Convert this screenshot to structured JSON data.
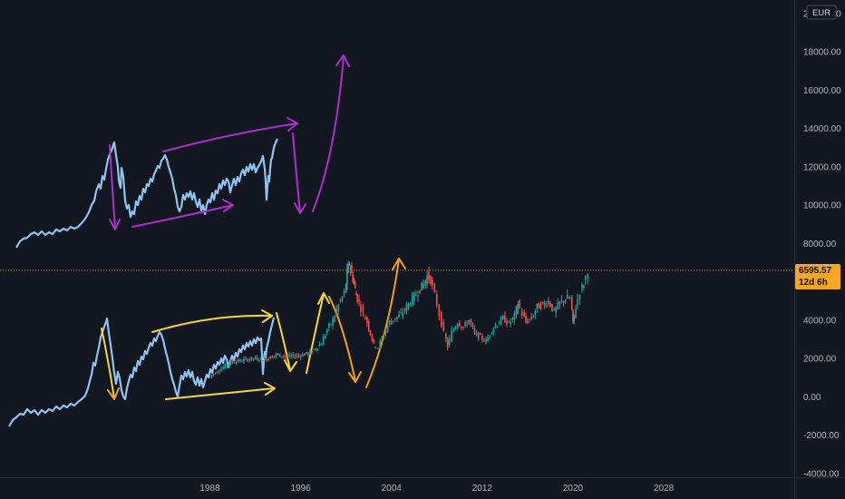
{
  "chart_data": {
    "type": "line",
    "currency": "EUR",
    "y_ticks": [
      -4000,
      -2000,
      0,
      2000,
      4000,
      6000,
      8000,
      10000,
      12000,
      14000,
      16000,
      18000,
      20000
    ],
    "y_tick_labels": [
      "-4000.00",
      "-2000.00",
      "0.00",
      "2000.00",
      "4000.00",
      "6000.00",
      "8000.00",
      "10000.00",
      "12000.00",
      "14000.00",
      "16000.00",
      "18000.00",
      "20000.00"
    ],
    "ylim": [
      -4200,
      20700
    ],
    "x_ticks": [
      1988,
      1996,
      2004,
      2012,
      2020,
      2028
    ],
    "xlim": [
      1969.5,
      2039.5
    ],
    "last_price": "6595.57",
    "last_price_value": 6595.57,
    "countdown": "12d 6h",
    "grid": false,
    "series": [
      {
        "kind": "candles",
        "up_color": "#26a69a",
        "down_color": "#ef5350",
        "points": [
          [
            1988.0,
            1000
          ],
          [
            1989.0,
            1400
          ],
          [
            1990.0,
            1800
          ],
          [
            1991.0,
            1900
          ],
          [
            1992.0,
            2000
          ],
          [
            1993.0,
            1950
          ],
          [
            1994.0,
            2200
          ],
          [
            1995.0,
            2100
          ],
          [
            1996.0,
            2150
          ],
          [
            1997.0,
            2300
          ],
          [
            1998.0,
            2800
          ],
          [
            1998.5,
            3500
          ],
          [
            1999.0,
            4000
          ],
          [
            1999.5,
            4800
          ],
          [
            2000.0,
            5400
          ],
          [
            2000.2,
            6500
          ],
          [
            2000.4,
            7000
          ],
          [
            2000.6,
            6400
          ],
          [
            2000.8,
            5900
          ],
          [
            2001.0,
            5300
          ],
          [
            2001.3,
            4900
          ],
          [
            2001.7,
            4300
          ],
          [
            2002.0,
            3900
          ],
          [
            2002.3,
            3300
          ],
          [
            2002.6,
            2700
          ],
          [
            2003.0,
            2600
          ],
          [
            2003.5,
            3300
          ],
          [
            2004.0,
            3900
          ],
          [
            2004.5,
            4100
          ],
          [
            2005.0,
            4300
          ],
          [
            2005.5,
            4700
          ],
          [
            2006.0,
            5100
          ],
          [
            2006.5,
            5500
          ],
          [
            2007.0,
            5900
          ],
          [
            2007.3,
            6300
          ],
          [
            2007.6,
            6100
          ],
          [
            2008.0,
            5300
          ],
          [
            2008.4,
            4300
          ],
          [
            2008.8,
            3300
          ],
          [
            2009.1,
            2600
          ],
          [
            2009.5,
            3400
          ],
          [
            2010.0,
            3900
          ],
          [
            2010.5,
            3600
          ],
          [
            2011.0,
            4000
          ],
          [
            2011.5,
            3300
          ],
          [
            2012.0,
            3100
          ],
          [
            2012.5,
            2900
          ],
          [
            2013.0,
            3500
          ],
          [
            2013.5,
            3800
          ],
          [
            2014.0,
            4100
          ],
          [
            2014.5,
            3800
          ],
          [
            2015.0,
            4200
          ],
          [
            2015.3,
            4900
          ],
          [
            2015.7,
            4300
          ],
          [
            2016.0,
            3900
          ],
          [
            2016.5,
            4100
          ],
          [
            2017.0,
            4700
          ],
          [
            2017.5,
            4800
          ],
          [
            2018.0,
            5000
          ],
          [
            2018.5,
            4400
          ],
          [
            2019.0,
            4900
          ],
          [
            2019.5,
            5100
          ],
          [
            2019.9,
            5200
          ],
          [
            2020.1,
            3800
          ],
          [
            2020.4,
            4700
          ],
          [
            2020.8,
            5500
          ],
          [
            2021.1,
            5900
          ],
          [
            2021.5,
            6600
          ]
        ]
      }
    ]
  }
}
